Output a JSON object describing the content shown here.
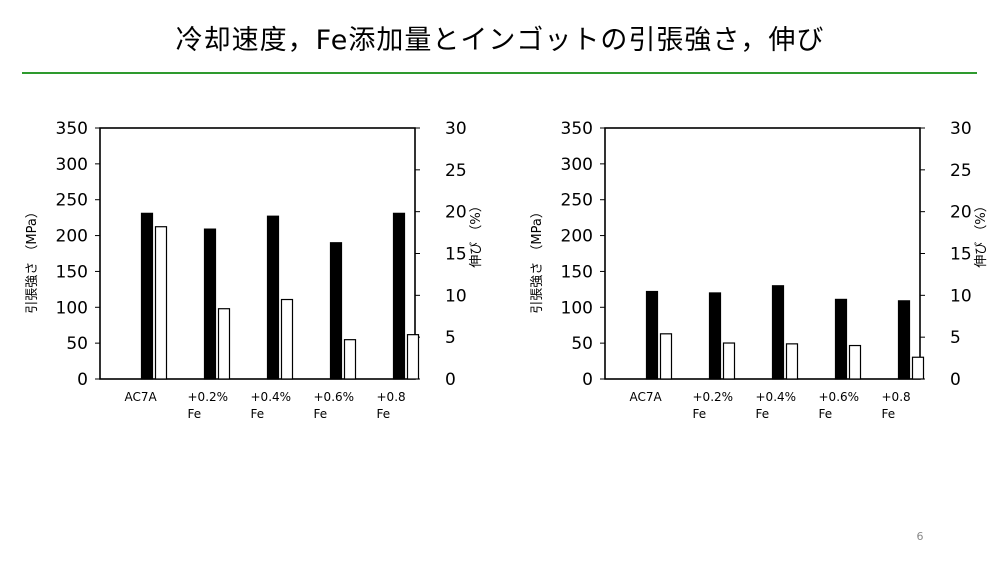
{
  "slide": {
    "title": "冷却速度，Fe添加量とインゴットの引張強さ，伸び",
    "page_number": "6",
    "accent_color": "#2e9a2e"
  },
  "chart_data": [
    {
      "type": "bar",
      "categories": [
        [
          "AC7A"
        ],
        [
          "+0.2%",
          "Fe"
        ],
        [
          "+0.4%",
          "Fe"
        ],
        [
          "+0.6%",
          "Fe"
        ],
        [
          "+0.8",
          "Fe"
        ]
      ],
      "ylabel": "引張強さ （MPa）",
      "y2label": "伸び （%）",
      "ylim": [
        0,
        350
      ],
      "yticks": [
        0,
        50,
        100,
        150,
        200,
        250,
        300,
        350
      ],
      "y2lim": [
        0,
        30
      ],
      "y2ticks": [
        0,
        5,
        10,
        15,
        20,
        25,
        30
      ],
      "grid": false,
      "series": [
        {
          "axis": "left",
          "fill": "#000000",
          "values": [
            231,
            209,
            227,
            190,
            231
          ]
        },
        {
          "axis": "right",
          "fill": "#ffffff",
          "values": [
            18.2,
            8.4,
            9.5,
            4.7,
            5.3
          ]
        }
      ]
    },
    {
      "type": "bar",
      "categories": [
        [
          "AC7A"
        ],
        [
          "+0.2%",
          "Fe"
        ],
        [
          "+0.4%",
          "Fe"
        ],
        [
          "+0.6%",
          "Fe"
        ],
        [
          "+0.8",
          "Fe"
        ]
      ],
      "ylabel": "引張強さ （MPa）",
      "y2label": "伸び （%）",
      "ylim": [
        0,
        350
      ],
      "yticks": [
        0,
        50,
        100,
        150,
        200,
        250,
        300,
        350
      ],
      "y2lim": [
        0,
        30
      ],
      "y2ticks": [
        0,
        5,
        10,
        15,
        20,
        25,
        30
      ],
      "grid": false,
      "series": [
        {
          "axis": "left",
          "fill": "#000000",
          "values": [
            122,
            120,
            130,
            111,
            109
          ]
        },
        {
          "axis": "right",
          "fill": "#ffffff",
          "values": [
            5.4,
            4.3,
            4.2,
            4.0,
            2.6
          ]
        }
      ]
    }
  ]
}
